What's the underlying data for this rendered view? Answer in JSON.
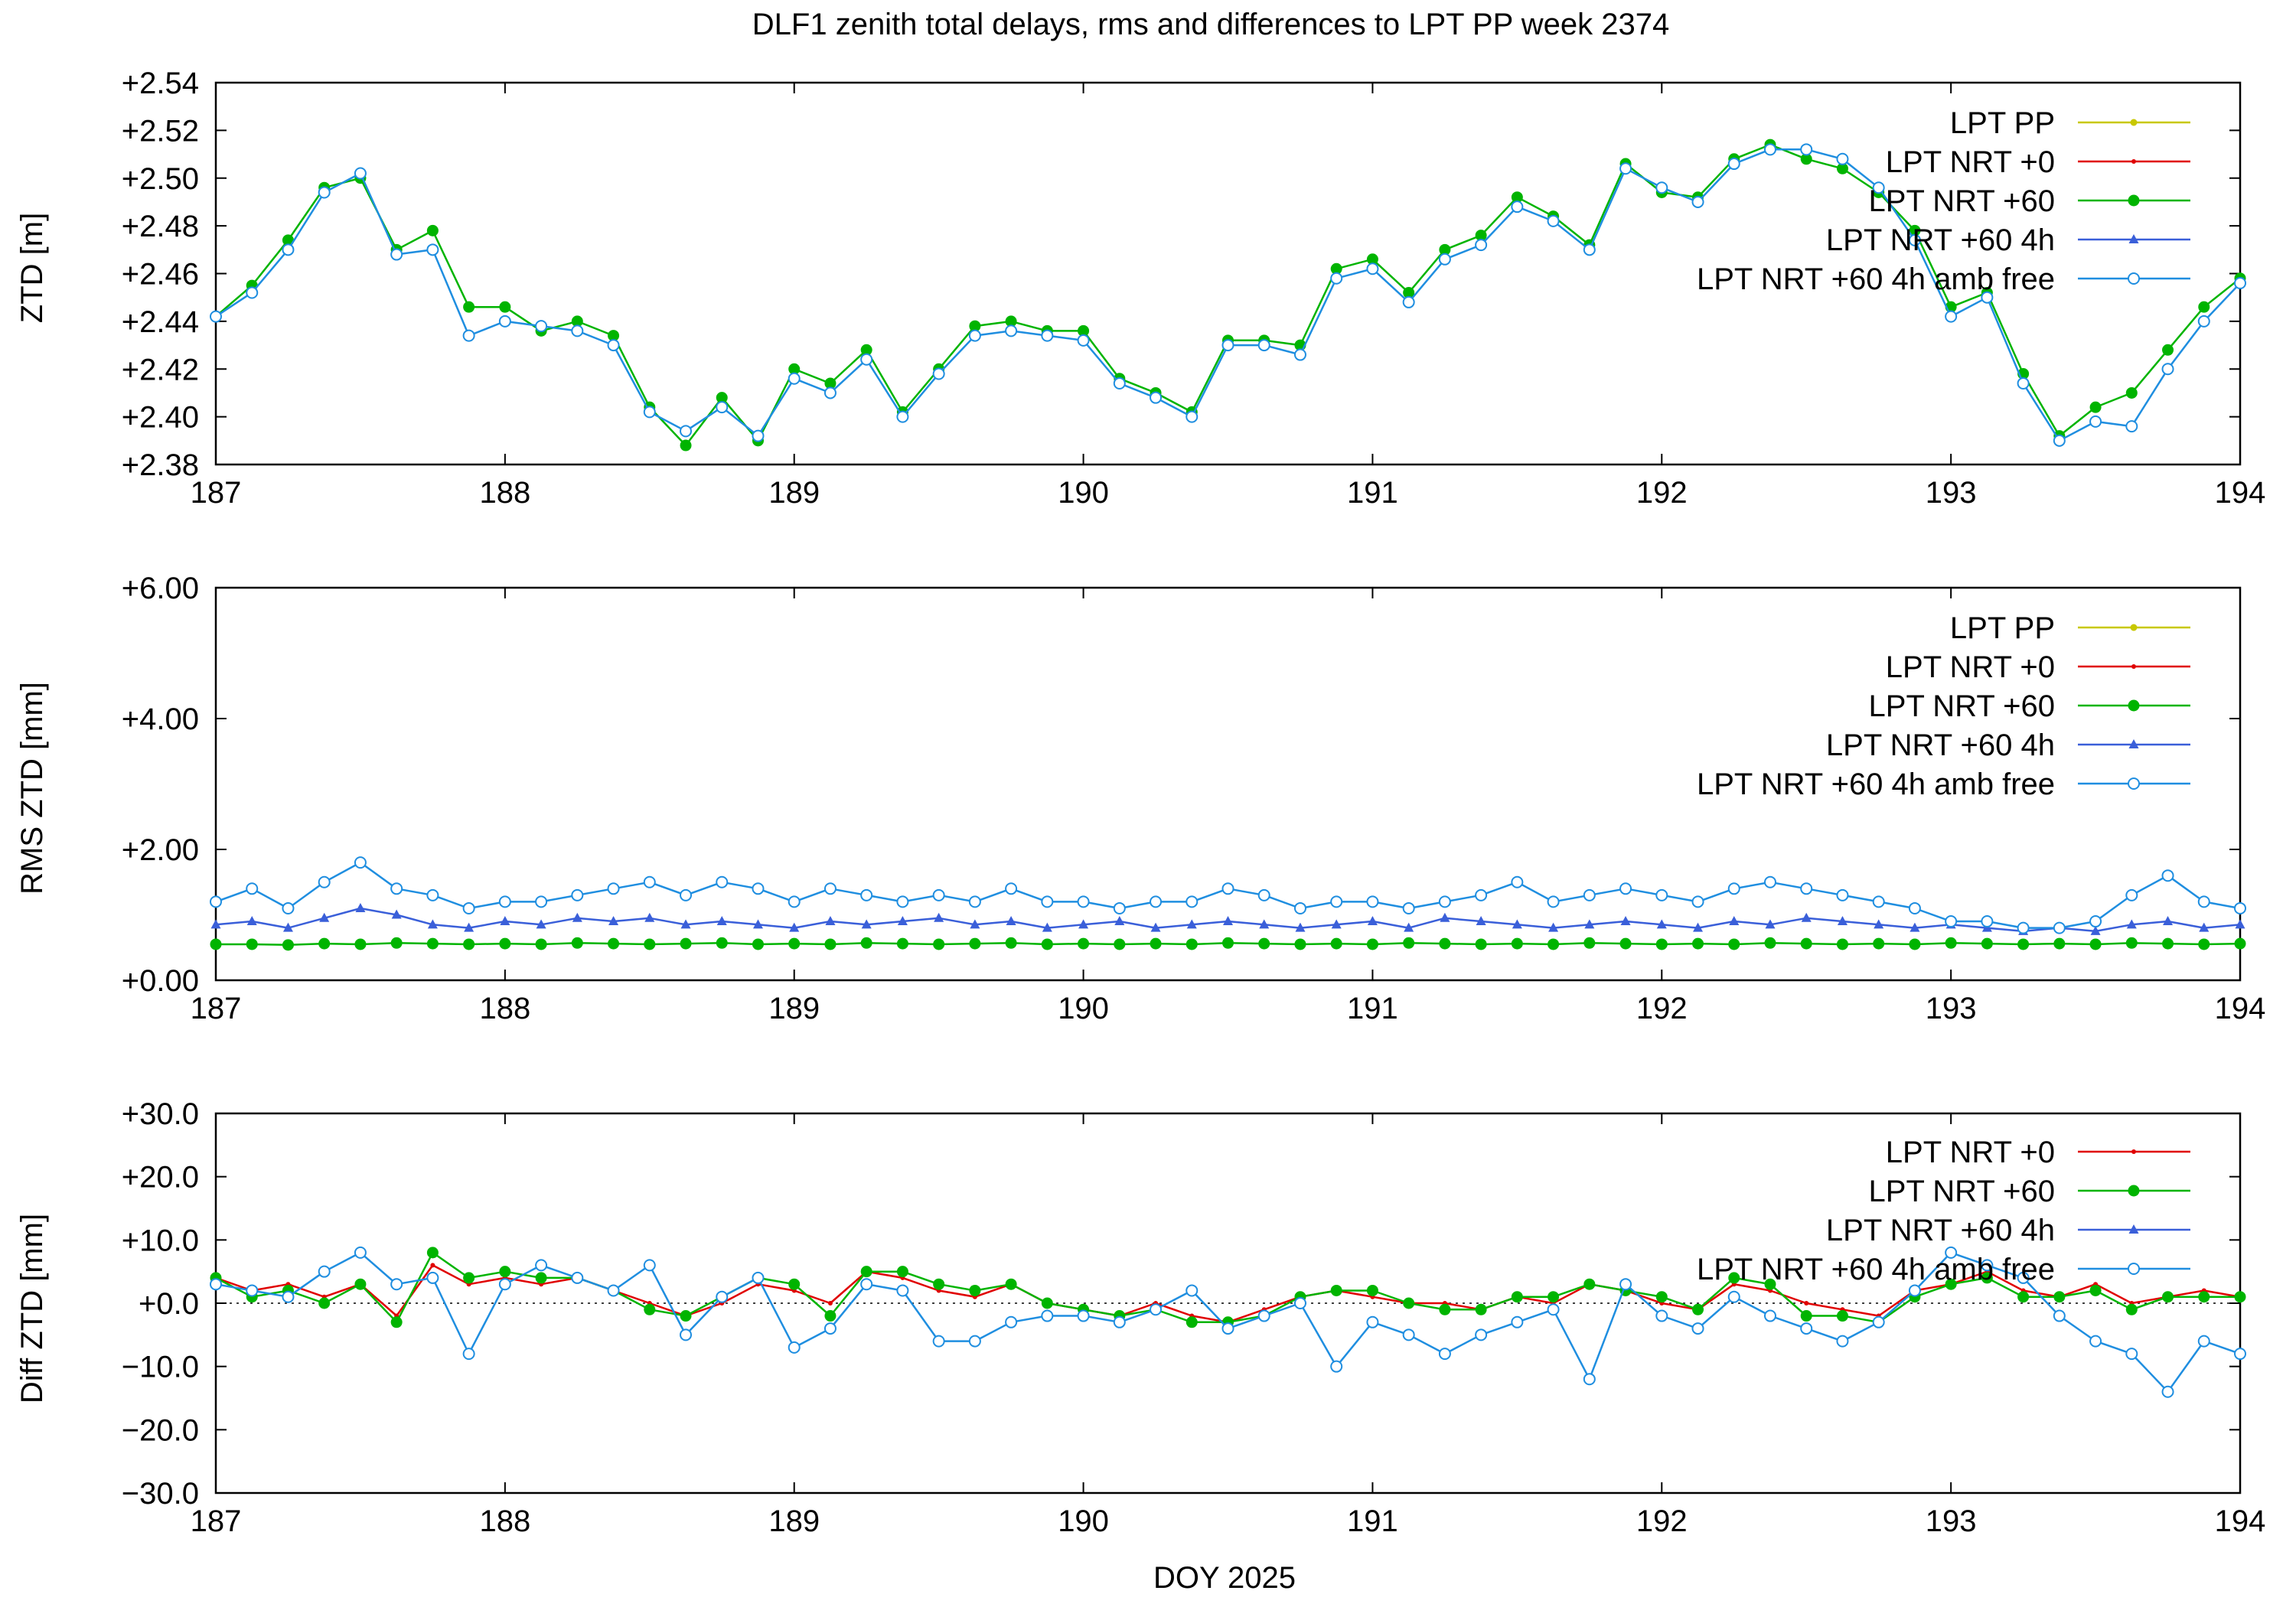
{
  "figure": {
    "title": "DLF1 zenith total delays, rms and differences to LPT PP week 2374",
    "xlabel": "DOY 2025"
  },
  "series_styles": [
    {
      "name": "LPT PP",
      "color": "#c8c800",
      "marker": "dot-small"
    },
    {
      "name": "LPT NRT +0",
      "color": "#e00000",
      "marker": "dot-tiny"
    },
    {
      "name": "LPT NRT +60",
      "color": "#00b400",
      "marker": "dot-large"
    },
    {
      "name": "LPT NRT +60 4h",
      "color": "#3a5fd9",
      "marker": "triangle"
    },
    {
      "name": "LPT NRT +60 4h amb free",
      "color": "#1f8ee0",
      "marker": "open-circle"
    }
  ],
  "chart_data": [
    {
      "type": "line",
      "panel": "ztd",
      "ylabel": "ZTD [m]",
      "xlim": [
        187,
        194
      ],
      "ylim": [
        2.38,
        2.54
      ],
      "xticks": [
        "187",
        "188",
        "189",
        "190",
        "191",
        "192",
        "193",
        "194"
      ],
      "yticks": [
        "+2.38",
        "+2.40",
        "+2.42",
        "+2.44",
        "+2.46",
        "+2.48",
        "+2.50",
        "+2.52",
        "+2.54"
      ],
      "legend": [
        "LPT PP",
        "LPT NRT +0",
        "LPT NRT +60",
        "LPT NRT +60 4h",
        "LPT NRT +60 4h amb free"
      ],
      "legend_position": "top-right",
      "x": [
        187.0,
        187.125,
        187.25,
        187.375,
        187.5,
        187.625,
        187.75,
        187.875,
        188.0,
        188.125,
        188.25,
        188.375,
        188.5,
        188.625,
        188.75,
        188.875,
        189.0,
        189.125,
        189.25,
        189.375,
        189.5,
        189.625,
        189.75,
        189.875,
        190.0,
        190.125,
        190.25,
        190.375,
        190.5,
        190.625,
        190.75,
        190.875,
        191.0,
        191.125,
        191.25,
        191.375,
        191.5,
        191.625,
        191.75,
        191.875,
        192.0,
        192.125,
        192.25,
        192.375,
        192.5,
        192.625,
        192.75,
        192.875,
        193.0,
        193.125,
        193.25,
        193.375,
        193.5,
        193.625,
        193.75,
        193.875,
        194.0
      ],
      "series": [
        {
          "name": "LPT NRT +60",
          "values": [
            2.442,
            2.455,
            2.474,
            2.496,
            2.5,
            2.47,
            2.478,
            2.446,
            2.446,
            2.436,
            2.44,
            2.434,
            2.404,
            2.388,
            2.408,
            2.39,
            2.42,
            2.414,
            2.428,
            2.402,
            2.42,
            2.438,
            2.44,
            2.436,
            2.436,
            2.416,
            2.41,
            2.402,
            2.432,
            2.432,
            2.43,
            2.462,
            2.466,
            2.452,
            2.47,
            2.476,
            2.492,
            2.484,
            2.472,
            2.506,
            2.494,
            2.492,
            2.508,
            2.514,
            2.508,
            2.504,
            2.494,
            2.478,
            2.446,
            2.452,
            2.418,
            2.392,
            2.404,
            2.41,
            2.428,
            2.446,
            2.458
          ]
        },
        {
          "name": "LPT NRT +60 4h amb free",
          "values": [
            2.442,
            2.452,
            2.47,
            2.494,
            2.502,
            2.468,
            2.47,
            2.434,
            2.44,
            2.438,
            2.436,
            2.43,
            2.402,
            2.394,
            2.404,
            2.392,
            2.416,
            2.41,
            2.424,
            2.4,
            2.418,
            2.434,
            2.436,
            2.434,
            2.432,
            2.414,
            2.408,
            2.4,
            2.43,
            2.43,
            2.426,
            2.458,
            2.462,
            2.448,
            2.466,
            2.472,
            2.488,
            2.482,
            2.47,
            2.504,
            2.496,
            2.49,
            2.506,
            2.512,
            2.512,
            2.508,
            2.496,
            2.474,
            2.442,
            2.45,
            2.414,
            2.39,
            2.398,
            2.396,
            2.42,
            2.44,
            2.456
          ]
        }
      ]
    },
    {
      "type": "line",
      "panel": "rms",
      "ylabel": "RMS ZTD [mm]",
      "xlim": [
        187,
        194
      ],
      "ylim": [
        0,
        6
      ],
      "xticks": [
        "187",
        "188",
        "189",
        "190",
        "191",
        "192",
        "193",
        "194"
      ],
      "yticks": [
        "+0.00",
        "+2.00",
        "+4.00",
        "+6.00"
      ],
      "legend": [
        "LPT PP",
        "LPT NRT +0",
        "LPT NRT +60",
        "LPT NRT +60 4h",
        "LPT NRT +60 4h amb free"
      ],
      "legend_position": "top-right",
      "x": [
        187.0,
        187.125,
        187.25,
        187.375,
        187.5,
        187.625,
        187.75,
        187.875,
        188.0,
        188.125,
        188.25,
        188.375,
        188.5,
        188.625,
        188.75,
        188.875,
        189.0,
        189.125,
        189.25,
        189.375,
        189.5,
        189.625,
        189.75,
        189.875,
        190.0,
        190.125,
        190.25,
        190.375,
        190.5,
        190.625,
        190.75,
        190.875,
        191.0,
        191.125,
        191.25,
        191.375,
        191.5,
        191.625,
        191.75,
        191.875,
        192.0,
        192.125,
        192.25,
        192.375,
        192.5,
        192.625,
        192.75,
        192.875,
        193.0,
        193.125,
        193.25,
        193.375,
        193.5,
        193.625,
        193.75,
        193.875,
        194.0
      ],
      "series": [
        {
          "name": "LPT NRT +60",
          "values": [
            0.55,
            0.55,
            0.54,
            0.56,
            0.55,
            0.57,
            0.56,
            0.55,
            0.56,
            0.55,
            0.57,
            0.56,
            0.55,
            0.56,
            0.57,
            0.55,
            0.56,
            0.55,
            0.57,
            0.56,
            0.55,
            0.56,
            0.57,
            0.55,
            0.56,
            0.55,
            0.56,
            0.55,
            0.57,
            0.56,
            0.55,
            0.56,
            0.55,
            0.57,
            0.56,
            0.55,
            0.56,
            0.55,
            0.57,
            0.56,
            0.55,
            0.56,
            0.55,
            0.57,
            0.56,
            0.55,
            0.56,
            0.55,
            0.57,
            0.56,
            0.55,
            0.56,
            0.55,
            0.57,
            0.56,
            0.55,
            0.56
          ]
        },
        {
          "name": "LPT NRT +60 4h",
          "values": [
            0.85,
            0.9,
            0.8,
            0.95,
            1.1,
            1.0,
            0.85,
            0.8,
            0.9,
            0.85,
            0.95,
            0.9,
            0.95,
            0.85,
            0.9,
            0.85,
            0.8,
            0.9,
            0.85,
            0.9,
            0.95,
            0.85,
            0.9,
            0.8,
            0.85,
            0.9,
            0.8,
            0.85,
            0.9,
            0.85,
            0.8,
            0.85,
            0.9,
            0.8,
            0.95,
            0.9,
            0.85,
            0.8,
            0.85,
            0.9,
            0.85,
            0.8,
            0.9,
            0.85,
            0.95,
            0.9,
            0.85,
            0.8,
            0.85,
            0.8,
            0.75,
            0.8,
            0.75,
            0.85,
            0.9,
            0.8,
            0.85
          ]
        },
        {
          "name": "LPT NRT +60 4h amb free",
          "values": [
            1.2,
            1.4,
            1.1,
            1.5,
            1.8,
            1.4,
            1.3,
            1.1,
            1.2,
            1.2,
            1.3,
            1.4,
            1.5,
            1.3,
            1.5,
            1.4,
            1.2,
            1.4,
            1.3,
            1.2,
            1.3,
            1.2,
            1.4,
            1.2,
            1.2,
            1.1,
            1.2,
            1.2,
            1.4,
            1.3,
            1.1,
            1.2,
            1.2,
            1.1,
            1.2,
            1.3,
            1.5,
            1.2,
            1.3,
            1.4,
            1.3,
            1.2,
            1.4,
            1.5,
            1.4,
            1.3,
            1.2,
            1.1,
            0.9,
            0.9,
            0.8,
            0.8,
            0.9,
            1.3,
            1.6,
            1.2,
            1.1
          ]
        }
      ]
    },
    {
      "type": "line",
      "panel": "diff",
      "ylabel": "Diff ZTD [mm]",
      "xlabel": "DOY 2025",
      "xlim": [
        187,
        194
      ],
      "ylim": [
        -30,
        30
      ],
      "xticks": [
        "187",
        "188",
        "189",
        "190",
        "191",
        "192",
        "193",
        "194"
      ],
      "yticks": [
        "−30.0",
        "−20.0",
        "−10.0",
        "+0.0",
        "+10.0",
        "+20.0",
        "+30.0"
      ],
      "legend": [
        "LPT NRT +0",
        "LPT NRT +60",
        "LPT NRT +60 4h",
        "LPT NRT +60 4h amb free"
      ],
      "legend_position": "top-right",
      "x": [
        187.0,
        187.125,
        187.25,
        187.375,
        187.5,
        187.625,
        187.75,
        187.875,
        188.0,
        188.125,
        188.25,
        188.375,
        188.5,
        188.625,
        188.75,
        188.875,
        189.0,
        189.125,
        189.25,
        189.375,
        189.5,
        189.625,
        189.75,
        189.875,
        190.0,
        190.125,
        190.25,
        190.375,
        190.5,
        190.625,
        190.75,
        190.875,
        191.0,
        191.125,
        191.25,
        191.375,
        191.5,
        191.625,
        191.75,
        191.875,
        192.0,
        192.125,
        192.25,
        192.375,
        192.5,
        192.625,
        192.75,
        192.875,
        193.0,
        193.125,
        193.25,
        193.375,
        193.5,
        193.625,
        193.75,
        193.875,
        194.0
      ],
      "series": [
        {
          "name": "LPT NRT +0",
          "values": [
            4,
            2,
            3,
            1,
            3,
            -2,
            6,
            3,
            4,
            3,
            4,
            2,
            0,
            -2,
            0,
            3,
            2,
            0,
            5,
            4,
            2,
            1,
            3,
            0,
            -1,
            -2,
            0,
            -2,
            -3,
            -1,
            1,
            2,
            1,
            0,
            0,
            -1,
            1,
            0,
            3,
            2,
            0,
            -1,
            3,
            2,
            0,
            -1,
            -2,
            2,
            3,
            5,
            2,
            1,
            3,
            0,
            1,
            2,
            1
          ]
        },
        {
          "name": "LPT NRT +60",
          "values": [
            4,
            1,
            2,
            0,
            3,
            -3,
            8,
            4,
            5,
            4,
            4,
            2,
            -1,
            -2,
            1,
            4,
            3,
            -2,
            5,
            5,
            3,
            2,
            3,
            0,
            -1,
            -2,
            -1,
            -3,
            -3,
            -2,
            1,
            2,
            2,
            0,
            -1,
            -1,
            1,
            1,
            3,
            2,
            1,
            -1,
            4,
            3,
            -2,
            -2,
            -3,
            1,
            3,
            4,
            1,
            1,
            2,
            -1,
            1,
            1,
            1
          ]
        },
        {
          "name": "LPT NRT +60 4h amb free",
          "values": [
            3,
            2,
            1,
            5,
            8,
            3,
            4,
            -8,
            3,
            6,
            4,
            2,
            6,
            -5,
            1,
            4,
            -7,
            -4,
            3,
            2,
            -6,
            -6,
            -3,
            -2,
            -2,
            -3,
            -1,
            2,
            -4,
            -2,
            0,
            -10,
            -3,
            -5,
            -8,
            -5,
            -3,
            -1,
            -12,
            3,
            -2,
            -4,
            1,
            -2,
            -4,
            -6,
            -3,
            2,
            8,
            6,
            4,
            -2,
            -6,
            -8,
            -14,
            -6,
            -8
          ]
        }
      ]
    }
  ]
}
